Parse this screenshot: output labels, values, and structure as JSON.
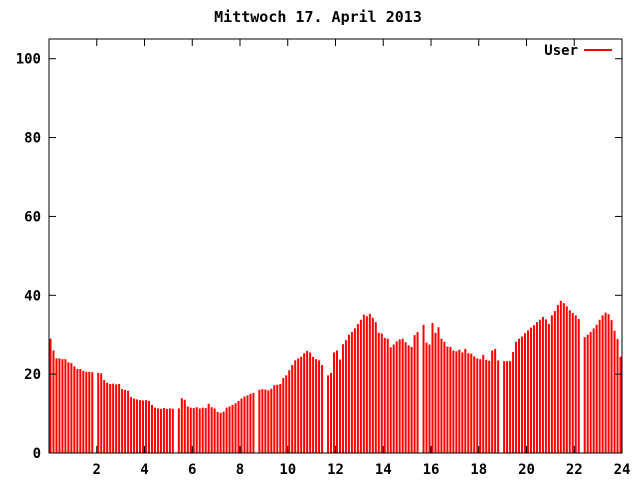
{
  "window": {
    "background": "#ffffff",
    "text_color": "#000000",
    "axis_color": "#000000"
  },
  "chart_data": {
    "type": "bar",
    "title": "Mittwoch 17. April 2013",
    "legend": {
      "label": "User",
      "color": "#ff0000",
      "position": "top-right-inside"
    },
    "bar_color": "#ff0000",
    "grid": false,
    "xlim": [
      0,
      24
    ],
    "ylim": [
      0,
      105
    ],
    "x_ticks": [
      2,
      4,
      6,
      8,
      10,
      12,
      14,
      16,
      18,
      20,
      22,
      24
    ],
    "y_ticks": [
      0,
      20,
      40,
      60,
      80,
      100
    ],
    "x_start_hour": 0,
    "sample_interval_hours": 0.125,
    "values": [
      29,
      26,
      24,
      24,
      23.8,
      23.8,
      23,
      22.8,
      22,
      21.3,
      21.3,
      20.8,
      20.6,
      20.6,
      20.5,
      null,
      20.3,
      20.2,
      18.5,
      17.8,
      17.5,
      17.6,
      17.4,
      17.5,
      16.2,
      16,
      15.8,
      14.2,
      13.8,
      13.6,
      13.4,
      13.3,
      13.4,
      13.2,
      12.2,
      11.5,
      11.3,
      11.2,
      11.4,
      11.2,
      11.3,
      11.2,
      null,
      11.3,
      13.9,
      13.5,
      11.8,
      11.5,
      11.4,
      11.6,
      11.3,
      11.5,
      11.4,
      12.5,
      11.6,
      11.3,
      10.4,
      10.2,
      10.5,
      11.5,
      11.8,
      12.2,
      12.6,
      13.2,
      13.8,
      14.3,
      14.6,
      15,
      15.2,
      null,
      16,
      16.2,
      16.1,
      15.9,
      16.3,
      17.2,
      17.3,
      17.5,
      19,
      19.7,
      21,
      22.3,
      23.5,
      24,
      24.4,
      25.3,
      25.9,
      25.5,
      24.4,
      23.8,
      23.5,
      22.3,
      null,
      19.7,
      20.3,
      25.5,
      26,
      23.7,
      27.6,
      28.6,
      30,
      30.7,
      31.6,
      32.7,
      33.8,
      35.1,
      34.7,
      35.3,
      34.3,
      33.2,
      30.5,
      30.3,
      29.2,
      29,
      26.8,
      27.5,
      28.3,
      28.8,
      29,
      28.1,
      27.3,
      26.9,
      29.9,
      30.7,
      null,
      32.5,
      28,
      27.5,
      33,
      30.5,
      31.9,
      29,
      28.2,
      27,
      26.9,
      26,
      25.8,
      26.2,
      25.5,
      26.4,
      25.3,
      25.2,
      24.5,
      24,
      23.8,
      24.9,
      23.6,
      23.4,
      26,
      26.4,
      23.5,
      null,
      23.3,
      23.3,
      23.3,
      25.6,
      28.2,
      29,
      29.5,
      30.4,
      31.1,
      31.8,
      32.4,
      33.2,
      33.8,
      34.5,
      33.9,
      32.7,
      34.9,
      36,
      37.5,
      38.6,
      38,
      37.2,
      36.2,
      35.5,
      34.9,
      34,
      null,
      29.4,
      30,
      30.7,
      31.6,
      32.5,
      33.8,
      34.9,
      35.6,
      35.2,
      33.7,
      31,
      28.9,
      24.4
    ]
  }
}
